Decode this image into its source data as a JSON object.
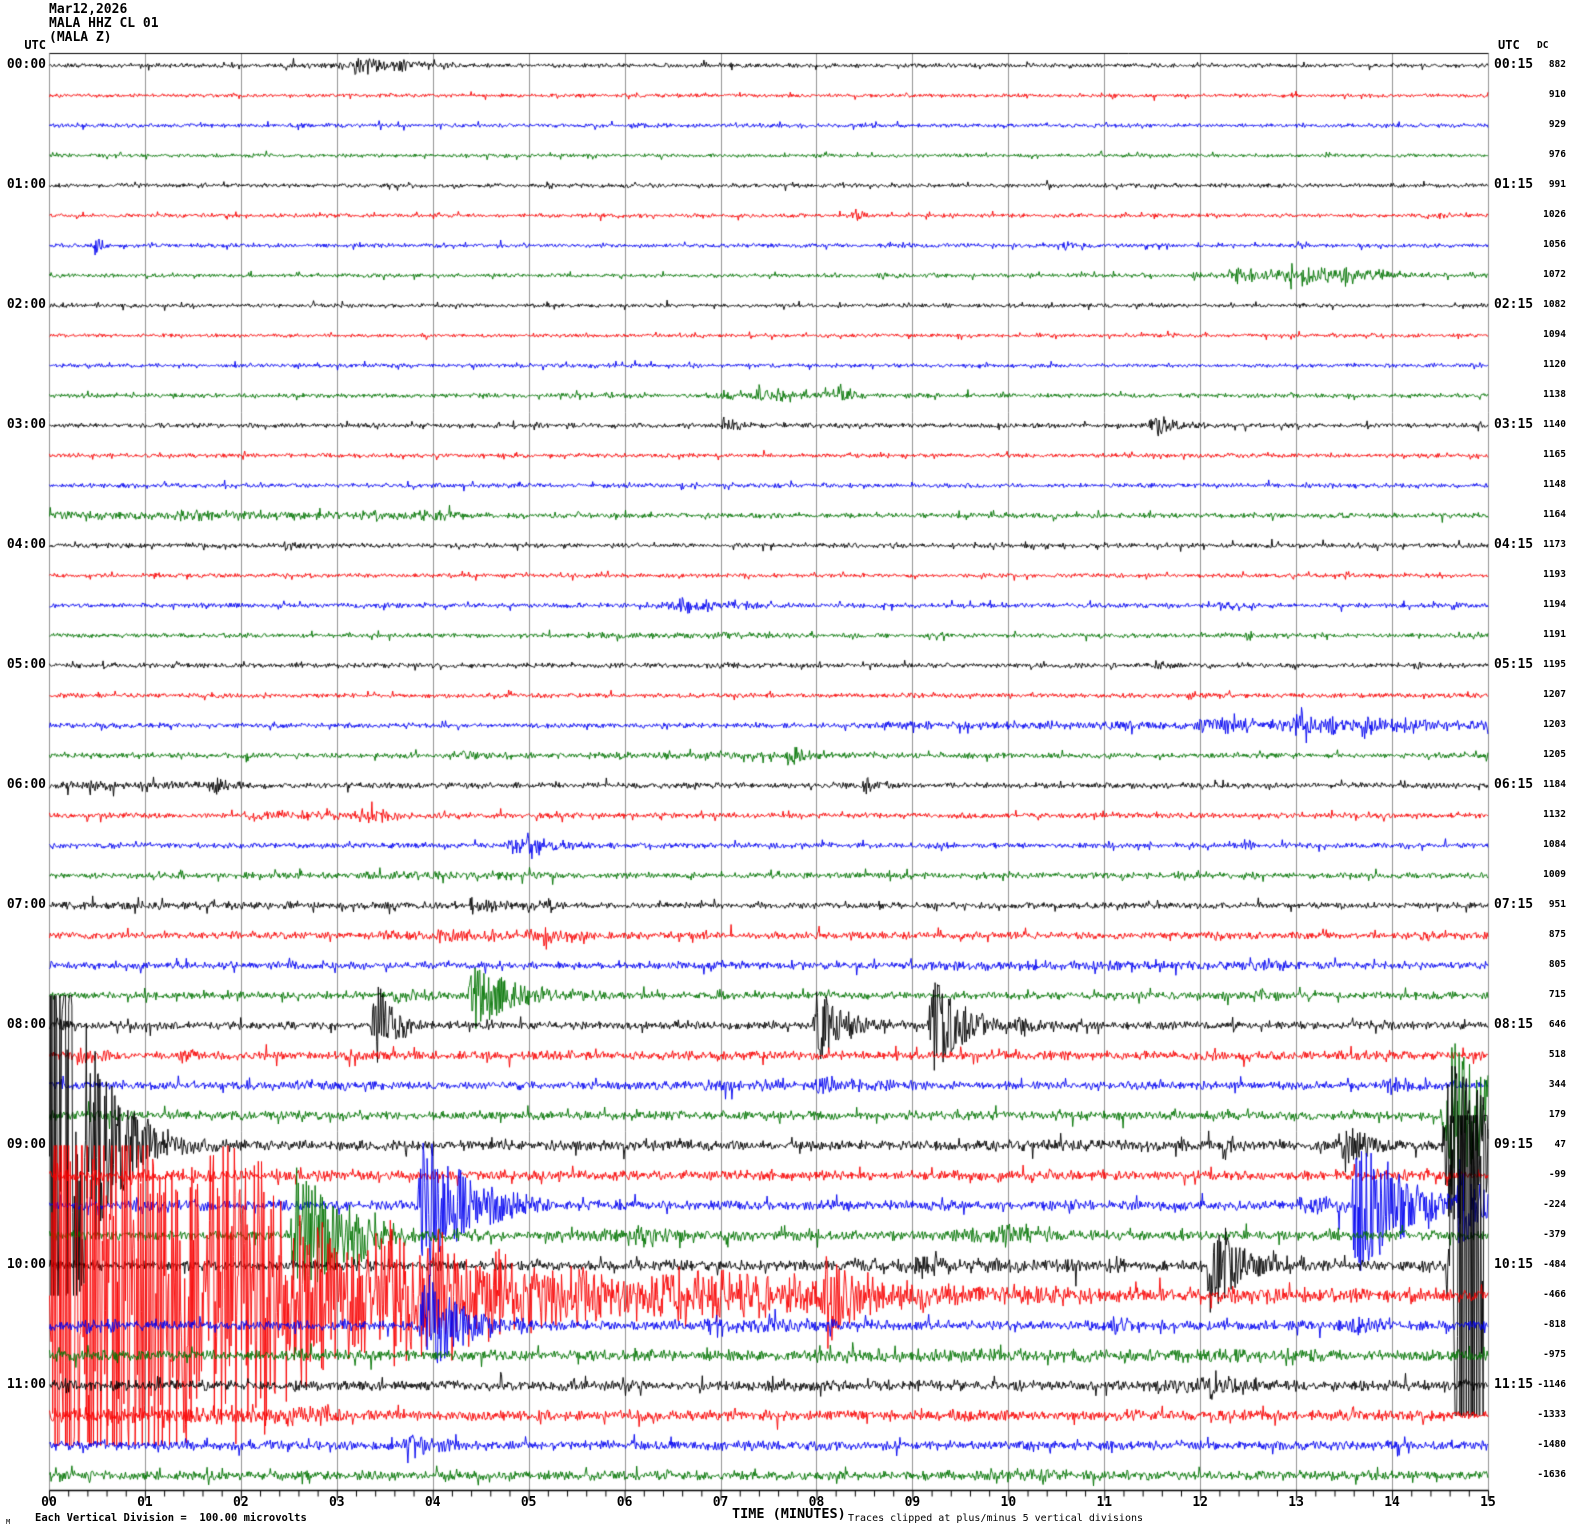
{
  "header": {
    "date_line": "Mar12,2026",
    "station_line": "MALA HHZ CL 01",
    "component_line": "(MALA Z)",
    "utc_left": "UTC",
    "utc_right": "UTC",
    "dc_label": "DC"
  },
  "footer": {
    "corner_mark": "M",
    "scale_note": "Each Vertical Division =  100.00 microvolts",
    "time_axis_label": "TIME (MINUTES)",
    "clip_note": "Traces clipped at plus/minus 5 vertical divisions"
  },
  "colors": {
    "black": "#000000",
    "red": "#f80000",
    "blue": "#0000f0",
    "green": "#007300",
    "grid": "#949494",
    "axis": "#000000",
    "background": "#ffffff"
  },
  "x_ticks": [
    "00",
    "01",
    "02",
    "03",
    "04",
    "05",
    "06",
    "07",
    "08",
    "09",
    "10",
    "11",
    "12",
    "13",
    "14",
    "15"
  ],
  "chart_data": {
    "type": "line",
    "title": "MALA HHZ CL 01 (MALA Z) helicorder, Mar12,2026",
    "xlabel": "TIME (MINUTES)",
    "x_range_minutes": [
      0,
      15
    ],
    "row_duration_minutes": 15,
    "vertical_division_microvolts": 100.0,
    "clip_divisions": 5,
    "color_cycle": [
      "black",
      "red",
      "blue",
      "green"
    ],
    "rows": [
      {
        "label_left": "00:00",
        "label_right": "00:15",
        "dc": 882,
        "noise": 1.6,
        "events": [
          [
            2.95,
            0.25,
            5
          ],
          [
            3.15,
            0.3,
            9
          ],
          [
            3.55,
            0.3,
            6
          ]
        ],
        "segments": [
          [
            2.3,
            4.3,
            2.2
          ]
        ]
      },
      {
        "label_left": "",
        "label_right": "",
        "dc": 910,
        "noise": 1.4,
        "events": [],
        "segments": []
      },
      {
        "label_left": "",
        "label_right": "",
        "dc": 929,
        "noise": 1.5,
        "events": [
          [
            6.05,
            0.3,
            3
          ]
        ],
        "segments": []
      },
      {
        "label_left": "",
        "label_right": "",
        "dc": 976,
        "noise": 1.4,
        "events": [],
        "segments": []
      },
      {
        "label_left": "01:00",
        "label_right": "01:15",
        "dc": 991,
        "noise": 1.6,
        "events": [],
        "segments": []
      },
      {
        "label_left": "",
        "label_right": "",
        "dc": 1026,
        "noise": 1.5,
        "events": [
          [
            8.35,
            0.08,
            8
          ],
          [
            14.45,
            0.08,
            5
          ]
        ],
        "segments": []
      },
      {
        "label_left": "",
        "label_right": "",
        "dc": 1056,
        "noise": 1.5,
        "events": [
          [
            0.45,
            0.08,
            10
          ],
          [
            10.55,
            0.15,
            4
          ]
        ],
        "segments": []
      },
      {
        "label_left": "",
        "label_right": "",
        "dc": 1072,
        "noise": 1.5,
        "events": [
          [
            8.6,
            0.3,
            3
          ],
          [
            12.3,
            0.5,
            7
          ],
          [
            12.85,
            0.6,
            9
          ],
          [
            13.4,
            0.4,
            7
          ]
        ],
        "segments": [
          [
            11.9,
            14.1,
            2.5
          ]
        ]
      },
      {
        "label_left": "02:00",
        "label_right": "02:15",
        "dc": 1082,
        "noise": 1.5,
        "events": [],
        "segments": []
      },
      {
        "label_left": "",
        "label_right": "",
        "dc": 1094,
        "noise": 1.4,
        "events": [],
        "segments": []
      },
      {
        "label_left": "",
        "label_right": "",
        "dc": 1120,
        "noise": 1.5,
        "events": [],
        "segments": []
      },
      {
        "label_left": "",
        "label_right": "",
        "dc": 1138,
        "noise": 1.7,
        "events": [
          [
            7.3,
            0.5,
            6
          ],
          [
            8.2,
            0.15,
            9
          ]
        ],
        "segments": [
          [
            6.8,
            8.4,
            3
          ]
        ]
      },
      {
        "label_left": "03:00",
        "label_right": "03:15",
        "dc": 1140,
        "noise": 1.8,
        "events": [
          [
            7.0,
            0.15,
            9
          ],
          [
            11.45,
            0.3,
            11
          ]
        ],
        "segments": []
      },
      {
        "label_left": "",
        "label_right": "",
        "dc": 1165,
        "noise": 1.6,
        "events": [],
        "segments": []
      },
      {
        "label_left": "",
        "label_right": "",
        "dc": 1148,
        "noise": 1.7,
        "events": [],
        "segments": []
      },
      {
        "label_left": "",
        "label_right": "",
        "dc": 1164,
        "noise": 1.9,
        "events": [
          [
            1.2,
            0.8,
            4
          ],
          [
            3.8,
            0.35,
            5
          ]
        ],
        "segments": [
          [
            0,
            4.3,
            3.2
          ]
        ]
      },
      {
        "label_left": "04:00",
        "label_right": "04:15",
        "dc": 1173,
        "noise": 1.8,
        "events": [
          [
            2.4,
            0.25,
            5
          ]
        ],
        "segments": []
      },
      {
        "label_left": "",
        "label_right": "",
        "dc": 1193,
        "noise": 1.6,
        "events": [],
        "segments": []
      },
      {
        "label_left": "",
        "label_right": "",
        "dc": 1194,
        "noise": 1.8,
        "events": [
          [
            6.5,
            0.5,
            7
          ],
          [
            12.15,
            0.25,
            5
          ],
          [
            14.6,
            0.08,
            5
          ]
        ],
        "segments": [
          [
            6.3,
            7.3,
            3
          ]
        ]
      },
      {
        "label_left": "",
        "label_right": "",
        "dc": 1191,
        "noise": 1.7,
        "events": [
          [
            12.45,
            0.1,
            6
          ]
        ],
        "segments": [
          [
            5.6,
            7.7,
            2.4
          ]
        ]
      },
      {
        "label_left": "05:00",
        "label_right": "05:15",
        "dc": 1195,
        "noise": 1.9,
        "events": [
          [
            11.5,
            0.15,
            5
          ],
          [
            14.2,
            0.1,
            4
          ]
        ],
        "segments": []
      },
      {
        "label_left": "",
        "label_right": "",
        "dc": 1207,
        "noise": 1.8,
        "events": [
          [
            11.85,
            0.2,
            4
          ]
        ],
        "segments": []
      },
      {
        "label_left": "",
        "label_right": "",
        "dc": 1203,
        "noise": 2.0,
        "events": [
          [
            11.9,
            0.8,
            9
          ],
          [
            12.9,
            0.7,
            11
          ],
          [
            13.6,
            0.4,
            8
          ]
        ],
        "segments": [
          [
            8.6,
            15,
            3.2
          ]
        ]
      },
      {
        "label_left": "",
        "label_right": "",
        "dc": 1205,
        "noise": 2.0,
        "events": [
          [
            7.68,
            0.12,
            16
          ],
          [
            4.2,
            0.5,
            3.5
          ]
        ],
        "segments": [
          [
            5.6,
            8.6,
            2.8
          ]
        ]
      },
      {
        "label_left": "06:00",
        "label_right": "06:15",
        "dc": 1184,
        "noise": 2.2,
        "events": [
          [
            0.35,
            0.25,
            6
          ],
          [
            1.7,
            0.12,
            9
          ],
          [
            8.45,
            0.15,
            10
          ]
        ],
        "segments": [
          [
            0,
            2.1,
            3
          ]
        ]
      },
      {
        "label_left": "",
        "label_right": "",
        "dc": 1132,
        "noise": 2.1,
        "events": [
          [
            3.2,
            0.4,
            5
          ]
        ],
        "segments": [
          [
            2.0,
            3.7,
            3.8
          ]
        ]
      },
      {
        "label_left": "",
        "label_right": "",
        "dc": 1084,
        "noise": 2.1,
        "events": [
          [
            4.75,
            0.5,
            9
          ],
          [
            4.95,
            0.1,
            14
          ]
        ],
        "segments": []
      },
      {
        "label_left": "",
        "label_right": "",
        "dc": 1009,
        "noise": 2.3,
        "events": [],
        "segments": [
          [
            3.3,
            5.3,
            3.4
          ]
        ]
      },
      {
        "label_left": "07:00",
        "label_right": "07:15",
        "dc": 951,
        "noise": 2.3,
        "events": [
          [
            4.35,
            0.3,
            6
          ],
          [
            5.15,
            0.1,
            7
          ]
        ],
        "segments": [
          [
            0,
            5.4,
            3.1
          ]
        ]
      },
      {
        "label_left": "",
        "label_right": "",
        "dc": 875,
        "noise": 2.8,
        "events": [
          [
            3.95,
            0.6,
            6
          ],
          [
            5.1,
            0.3,
            6
          ],
          [
            12.0,
            0.3,
            4
          ],
          [
            14.3,
            0.2,
            5
          ]
        ],
        "segments": [
          [
            3.4,
            5.6,
            4
          ]
        ]
      },
      {
        "label_left": "",
        "label_right": "",
        "dc": 805,
        "noise": 2.8,
        "events": [
          [
            12.6,
            0.2,
            5
          ]
        ],
        "segments": [
          [
            8.9,
            12.9,
            3.8
          ]
        ]
      },
      {
        "label_left": "",
        "label_right": "",
        "dc": 715,
        "noise": 2.8,
        "events": [
          [
            3.55,
            0.4,
            6
          ],
          [
            4.35,
            0.45,
            34
          ],
          [
            12.6,
            0.15,
            7
          ]
        ],
        "segments": []
      },
      {
        "label_left": "08:00",
        "label_right": "08:15",
        "dc": 646,
        "noise": 3.0,
        "events": [
          [
            0.05,
            0.15,
            7
          ],
          [
            3.35,
            0.2,
            48
          ],
          [
            7.95,
            0.25,
            42
          ],
          [
            9.15,
            0.3,
            52
          ],
          [
            10.05,
            0.3,
            9
          ],
          [
            12.3,
            0.15,
            6
          ]
        ],
        "segments": []
      },
      {
        "label_left": "",
        "label_right": "",
        "dc": 518,
        "noise": 3.4,
        "events": [
          [
            0.25,
            0.3,
            7
          ],
          [
            1.35,
            0.2,
            6
          ]
        ],
        "segments": []
      },
      {
        "label_left": "",
        "label_right": "",
        "dc": 344,
        "noise": 3.1,
        "events": [
          [
            7.95,
            0.3,
            9
          ],
          [
            13.85,
            0.4,
            8
          ]
        ],
        "segments": [
          [
            2.5,
            3.1,
            4.5
          ],
          [
            6.8,
            9.2,
            4.2
          ]
        ]
      },
      {
        "label_left": "",
        "label_right": "",
        "dc": 179,
        "noise": 3.4,
        "events": [
          [
            14.5,
            0.6,
            80
          ]
        ],
        "segments": [
          [
            0,
            1.2,
            4.2
          ]
        ]
      },
      {
        "label_left": "09:00",
        "label_right": "09:15",
        "dc": 47,
        "noise": 3.7,
        "events": [
          [
            -0.05,
            0.35,
            400
          ],
          [
            12.2,
            0.15,
            8
          ],
          [
            13.45,
            0.25,
            26
          ],
          [
            14.5,
            0.7,
            90
          ]
        ],
        "segments": [
          [
            9.5,
            12.6,
            4.5
          ]
        ]
      },
      {
        "label_left": "",
        "label_right": "",
        "dc": -99,
        "noise": 3.7,
        "events": [
          [
            2.3,
            0.3,
            6
          ]
        ],
        "segments": [
          [
            0,
            1.7,
            5
          ]
        ]
      },
      {
        "label_left": "",
        "label_right": "",
        "dc": -224,
        "noise": 3.7,
        "events": [
          [
            0.85,
            0.3,
            8
          ],
          [
            3.83,
            0.45,
            80
          ],
          [
            13.55,
            0.5,
            70
          ],
          [
            14.65,
            0.3,
            40
          ]
        ],
        "segments": [
          [
            13.0,
            14.4,
            7
          ]
        ]
      },
      {
        "label_left": "",
        "label_right": "",
        "dc": -379,
        "noise": 3.8,
        "events": [
          [
            2.5,
            0.45,
            75
          ],
          [
            3.1,
            0.3,
            18
          ],
          [
            6.0,
            0.5,
            8
          ],
          [
            9.8,
            0.4,
            9
          ]
        ],
        "segments": [
          [
            5.5,
            6.6,
            5
          ],
          [
            9.4,
            10.2,
            6
          ]
        ]
      },
      {
        "label_left": "10:00",
        "label_right": "10:15",
        "dc": -484,
        "noise": 4.0,
        "events": [
          [
            9.0,
            0.2,
            9
          ],
          [
            12.05,
            0.3,
            50
          ],
          [
            13.0,
            0.2,
            8
          ],
          [
            14.55,
            1.5,
            620
          ]
        ],
        "segments": [
          [
            8.3,
            11.2,
            5.5
          ]
        ]
      },
      {
        "label_left": "",
        "label_right": "",
        "dc": -466,
        "noise": 4.0,
        "events": [
          [
            0,
            0.5,
            500
          ],
          [
            0.6,
            0.9,
            260
          ],
          [
            1.6,
            1.5,
            120
          ],
          [
            3.2,
            2.0,
            55
          ],
          [
            6.0,
            3.0,
            18
          ],
          [
            8.05,
            0.35,
            48
          ]
        ],
        "segments": [
          [
            8.8,
            15,
            5
          ]
        ]
      },
      {
        "label_left": "",
        "label_right": "",
        "dc": -818,
        "noise": 3.8,
        "events": [
          [
            0.35,
            0.2,
            10
          ],
          [
            3.85,
            0.35,
            60
          ],
          [
            11.05,
            0.2,
            10
          ],
          [
            13.55,
            0.25,
            10
          ]
        ],
        "segments": [
          [
            6.8,
            8.2,
            5.5
          ]
        ]
      },
      {
        "label_left": "",
        "label_right": "",
        "dc": -975,
        "noise": 4.0,
        "events": [
          [
            2.5,
            0.2,
            7
          ]
        ],
        "segments": [
          [
            8,
            13.2,
            5.2
          ]
        ]
      },
      {
        "label_left": "11:00",
        "label_right": "11:15",
        "dc": -1146,
        "noise": 4.0,
        "events": [
          [
            0.15,
            0.1,
            8
          ],
          [
            12.05,
            0.35,
            12
          ]
        ],
        "segments": [
          [
            11.5,
            12.6,
            6
          ]
        ]
      },
      {
        "label_left": "",
        "label_right": "",
        "dc": -1333,
        "noise": 4.0,
        "events": [
          [
            1.85,
            0.3,
            9
          ],
          [
            2.35,
            0.3,
            9
          ]
        ],
        "segments": [
          [
            0,
            3.2,
            6
          ]
        ]
      },
      {
        "label_left": "",
        "label_right": "",
        "dc": -1480,
        "noise": 3.6,
        "events": [
          [
            3.7,
            0.25,
            14
          ],
          [
            4.05,
            0.12,
            9
          ]
        ],
        "segments": []
      },
      {
        "label_left": "",
        "label_right": "",
        "dc": -1636,
        "noise": 3.6,
        "events": [
          [
            4.0,
            0.1,
            6
          ],
          [
            10.3,
            0.25,
            5
          ]
        ],
        "segments": [
          [
            9.9,
            10.7,
            4.5
          ]
        ]
      }
    ]
  }
}
